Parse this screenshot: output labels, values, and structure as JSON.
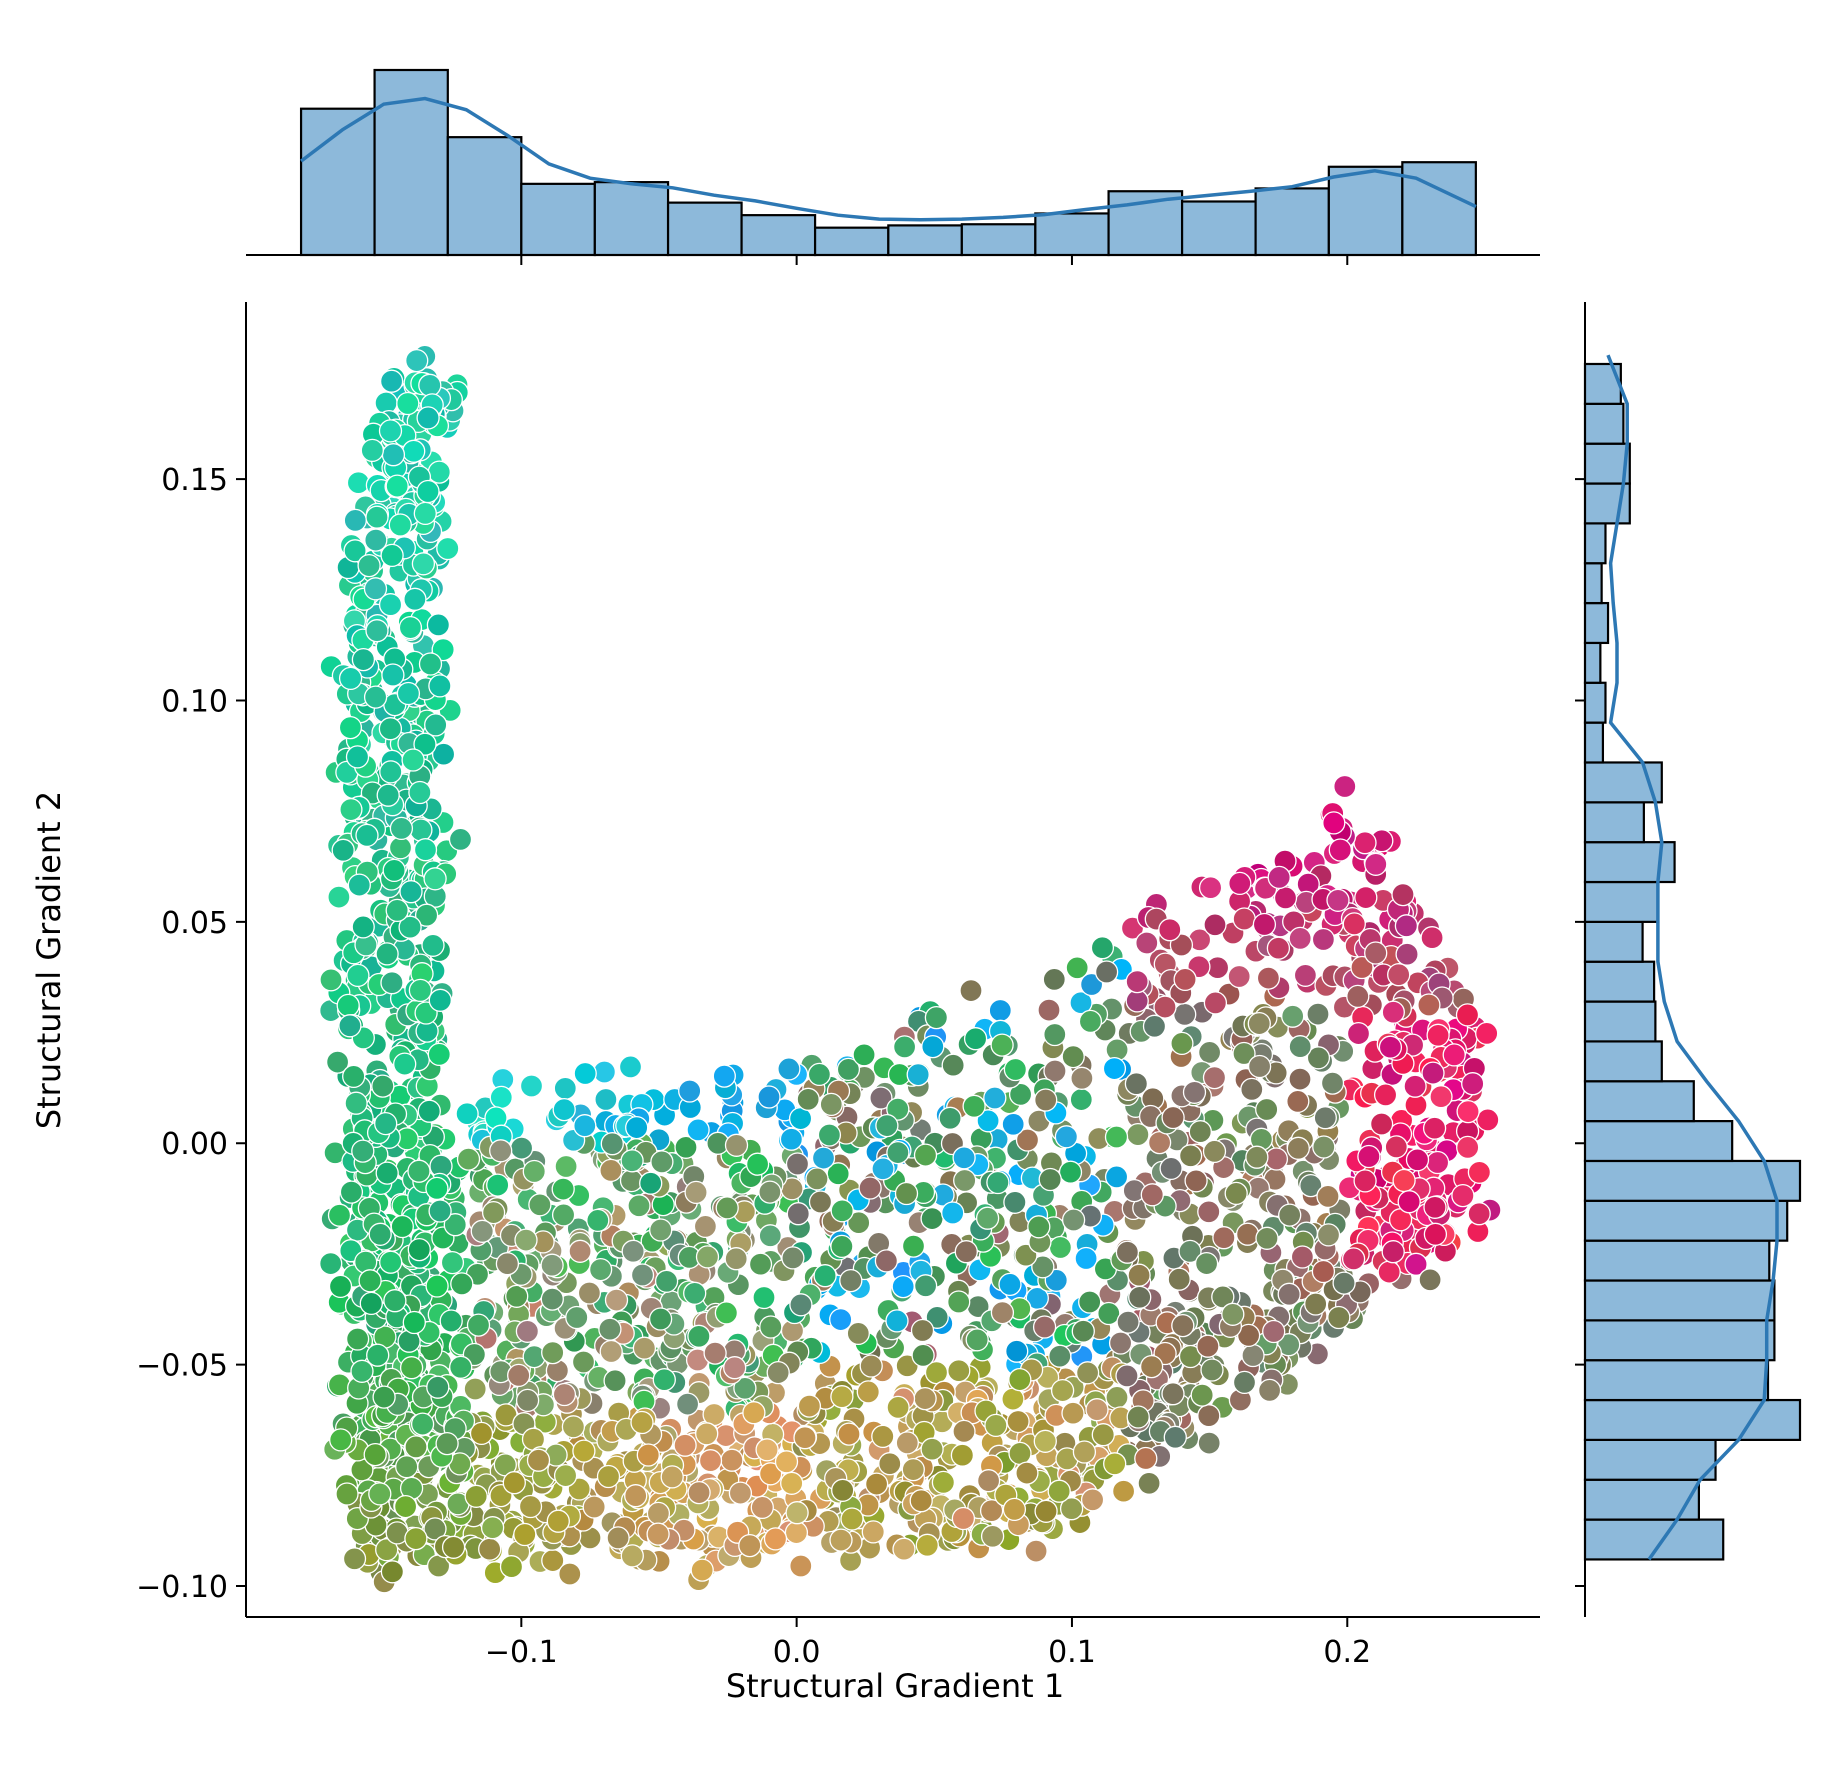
{
  "chart_data": {
    "type": "scatter",
    "subtype": "jointplot-with-marginal-histograms-and-kde",
    "title": "",
    "xlabel": "Structural Gradient 1",
    "ylabel": "Structural Gradient 2",
    "xlim": [
      -0.2,
      0.27
    ],
    "ylim": [
      -0.107,
      0.19
    ],
    "x_ticks": [
      -0.1,
      0.0,
      0.1,
      0.2
    ],
    "x_tick_labels": [
      "−0.1",
      "0.0",
      "0.1",
      "0.2"
    ],
    "y_ticks": [
      -0.1,
      -0.05,
      0.0,
      0.05,
      0.1,
      0.15
    ],
    "y_tick_labels": [
      "−0.10",
      "−0.05",
      "0.00",
      "0.05",
      "0.10",
      "0.15"
    ],
    "grid": false,
    "legend": "none",
    "marker_edge_color": "#ffffff",
    "point_count_approx": 3000,
    "point_color_gradient": {
      "green_left": "#28b463",
      "cyan_upper_left": "#1ad6c8",
      "blue_center": "#10a8e8",
      "olive_bottom": "#8a9a3a",
      "tan_bottom": "#d2a060",
      "salmon_center": "#e07a70",
      "brown_right": "#a06a60",
      "magenta_right": "#d0127a",
      "pink_right": "#f0305a"
    },
    "x_histogram": {
      "bin_edges": [
        -0.18,
        -0.1533,
        -0.1267,
        -0.1,
        -0.0733,
        -0.0467,
        -0.02,
        0.0067,
        0.0333,
        0.06,
        0.0867,
        0.1133,
        0.14,
        0.1667,
        0.1933,
        0.22,
        0.2467
      ],
      "counts": [
        257,
        325,
        207,
        125,
        128,
        92,
        70,
        48,
        52,
        54,
        73,
        112,
        94,
        117,
        155,
        163
      ],
      "kde_x": [
        -0.18,
        -0.165,
        -0.15,
        -0.135,
        -0.12,
        -0.105,
        -0.09,
        -0.075,
        -0.06,
        -0.045,
        -0.03,
        -0.015,
        0.0,
        0.015,
        0.03,
        0.045,
        0.06,
        0.075,
        0.09,
        0.105,
        0.12,
        0.135,
        0.15,
        0.165,
        0.18,
        0.195,
        0.21,
        0.225,
        0.2467
      ],
      "kde_y": [
        165,
        220,
        265,
        275,
        255,
        210,
        160,
        135,
        125,
        118,
        105,
        95,
        82,
        70,
        63,
        62,
        63,
        66,
        71,
        80,
        88,
        98,
        105,
        112,
        120,
        137,
        148,
        135,
        85
      ],
      "bar_fill": "#8db9da",
      "line_color": "#2d78b4"
    },
    "y_histogram": {
      "bin_edges": [
        -0.094,
        -0.085,
        -0.076,
        -0.067,
        -0.058,
        -0.049,
        -0.04,
        -0.031,
        -0.022,
        -0.013,
        -0.004,
        0.005,
        0.014,
        0.023,
        0.032,
        0.041,
        0.05,
        0.059,
        0.068,
        0.077,
        0.086,
        0.095,
        0.104,
        0.113,
        0.122,
        0.131,
        0.14,
        0.149,
        0.158,
        0.167,
        0.176
      ],
      "counts": [
        108,
        89,
        102,
        168,
        143,
        148,
        148,
        144,
        158,
        168,
        115,
        85,
        60,
        55,
        54,
        45,
        57,
        70,
        46,
        60,
        14,
        16,
        12,
        18,
        13,
        16,
        35,
        35,
        30,
        28
      ],
      "kde_y": [
        -0.094,
        -0.085,
        -0.076,
        -0.067,
        -0.058,
        -0.049,
        -0.04,
        -0.031,
        -0.022,
        -0.013,
        -0.004,
        0.005,
        0.014,
        0.023,
        0.032,
        0.041,
        0.05,
        0.059,
        0.068,
        0.077,
        0.086,
        0.095,
        0.104,
        0.113,
        0.122,
        0.131,
        0.14,
        0.149,
        0.158,
        0.167,
        0.178
      ],
      "kde_x": [
        50,
        72,
        90,
        120,
        140,
        142,
        142,
        147,
        150,
        150,
        140,
        120,
        95,
        72,
        62,
        57,
        57,
        57,
        60,
        55,
        45,
        20,
        25,
        25,
        22,
        20,
        25,
        30,
        33,
        33,
        18
      ],
      "bar_fill": "#8db9da",
      "line_color": "#2d78b4"
    }
  }
}
